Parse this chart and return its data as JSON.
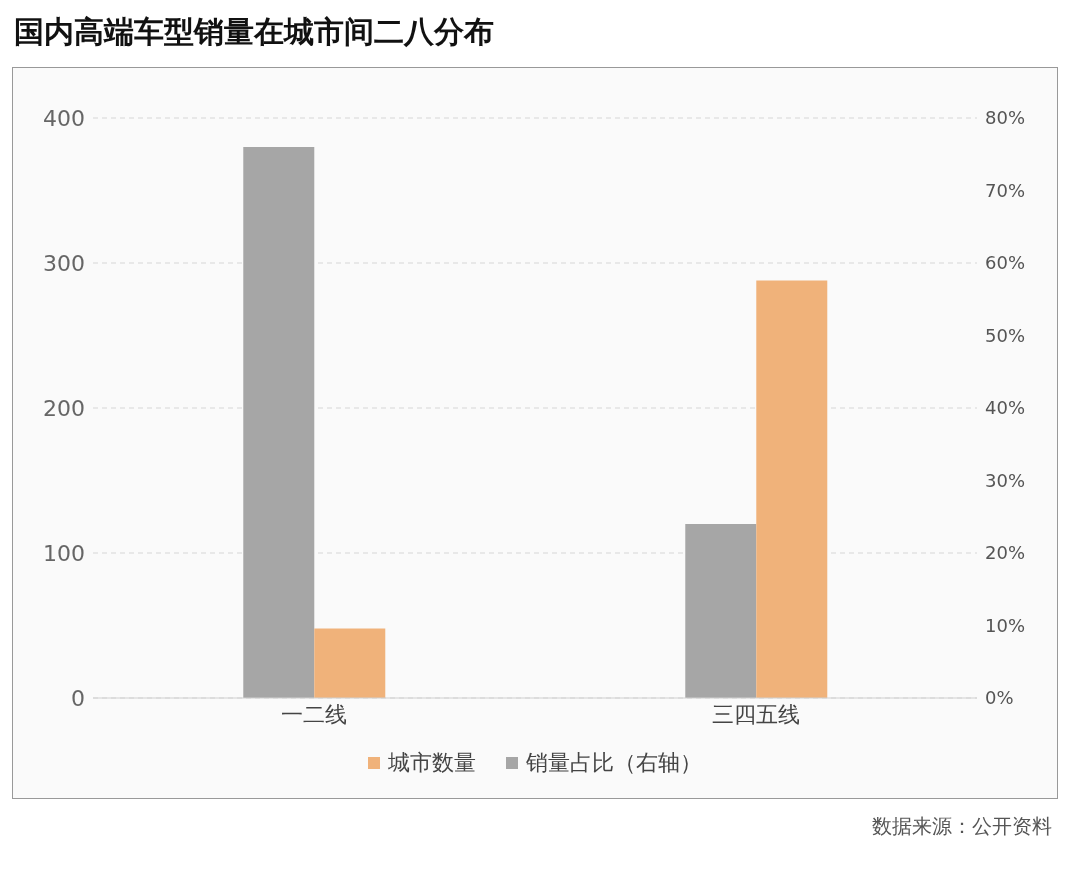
{
  "chart_data": {
    "type": "bar",
    "title": "国内高端车型销量在城市间二八分布",
    "categories": [
      "一二线",
      "三四五线"
    ],
    "series": [
      {
        "name": "城市数量",
        "color": "#f0b27a",
        "values": [
          48,
          288
        ]
      },
      {
        "name": "销量占比（右轴）",
        "color": "#a6a6a6",
        "values": [
          76,
          24
        ],
        "axis": "y2"
      }
    ],
    "ylim": [
      0,
      400
    ],
    "yticks": [
      0,
      100,
      200,
      300,
      400
    ],
    "y2lim": [
      0,
      80
    ],
    "y2ticks": [
      {
        "value": 0,
        "label": "0%"
      },
      {
        "value": 10,
        "label": "10%"
      },
      {
        "value": 20,
        "label": "20%"
      },
      {
        "value": 30,
        "label": "30%"
      },
      {
        "value": 40,
        "label": "40%"
      },
      {
        "value": 50,
        "label": "50%"
      },
      {
        "value": 60,
        "label": "60%"
      },
      {
        "value": 70,
        "label": "70%"
      },
      {
        "value": 80,
        "label": "80%"
      }
    ],
    "grid": "y",
    "legend": "bottom",
    "annotations": [
      "数据来源：公开资料"
    ]
  }
}
